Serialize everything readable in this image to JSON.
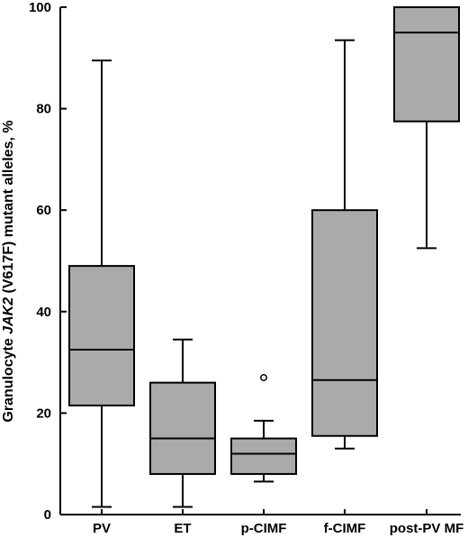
{
  "chart_data": {
    "type": "box",
    "title": "",
    "xlabel": "",
    "ylabel": {
      "prefix": "Granulocyte ",
      "gene": "JAK2",
      "suffix": " (V617F) mutant alleles, %"
    },
    "ylim": [
      0,
      100
    ],
    "yticks": [
      0,
      20,
      40,
      60,
      80,
      100
    ],
    "grid": false,
    "box_color": "#aaaaaa",
    "categories": [
      "PV",
      "ET",
      "p-CIMF",
      "f-CIMF",
      "post-PV MF"
    ],
    "boxes": [
      {
        "category": "PV",
        "whisker_low": 1.5,
        "q1": 21.5,
        "median": 32.5,
        "q3": 49,
        "whisker_high": 89.5,
        "outliers": []
      },
      {
        "category": "ET",
        "whisker_low": 1.5,
        "q1": 8,
        "median": 15,
        "q3": 26,
        "whisker_high": 34.5,
        "outliers": []
      },
      {
        "category": "p-CIMF",
        "whisker_low": 6.5,
        "q1": 8,
        "median": 12,
        "q3": 15,
        "whisker_high": 18.5,
        "outliers": [
          27
        ]
      },
      {
        "category": "f-CIMF",
        "whisker_low": 13,
        "q1": 15.5,
        "median": 26.5,
        "q3": 60,
        "whisker_high": 93.5,
        "outliers": []
      },
      {
        "category": "post-PV MF",
        "whisker_low": 52.5,
        "q1": 77.5,
        "median": 95,
        "q3": 100,
        "whisker_high": 100,
        "outliers": []
      }
    ]
  }
}
